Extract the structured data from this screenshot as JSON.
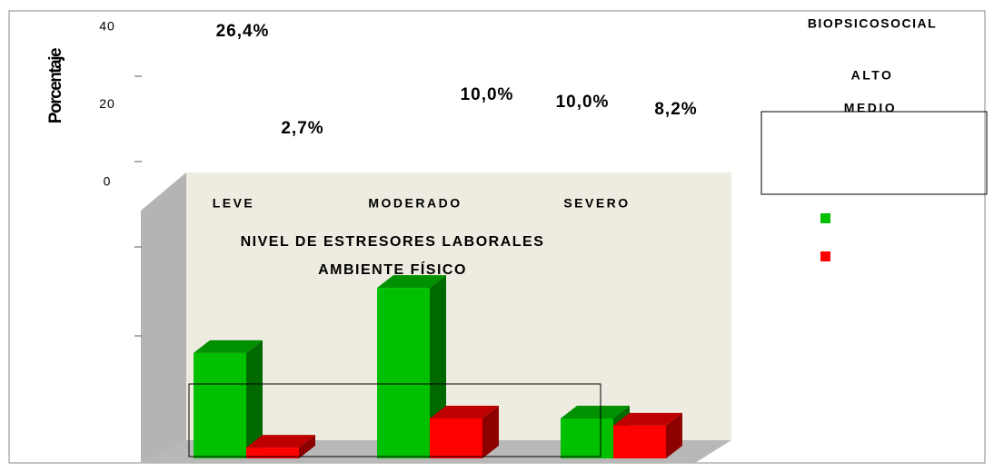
{
  "chart_data": {
    "type": "bar3d",
    "ylabel": "Porcentaje",
    "xlabel": [
      "NIVEL DE ESTRESORES LABORALES",
      "AMBIENTE FÍSICO"
    ],
    "legend_title": "BIOPSICOSOCIAL",
    "categories": [
      "LEVE",
      "MODERADO",
      "SEVERO"
    ],
    "series": [
      {
        "name": "ALTO",
        "color": "#00c000",
        "values": [
          26.4,
          42.7,
          10.0
        ],
        "value_labels": [
          "26,4%",
          null,
          "10,0%"
        ]
      },
      {
        "name": "MEDIO",
        "color": "#ff0000",
        "values": [
          2.7,
          10.0,
          8.2
        ],
        "value_labels": [
          "2,7%",
          "10,0%",
          "8,2%"
        ]
      }
    ],
    "yticks": [
      0,
      20,
      40
    ]
  }
}
